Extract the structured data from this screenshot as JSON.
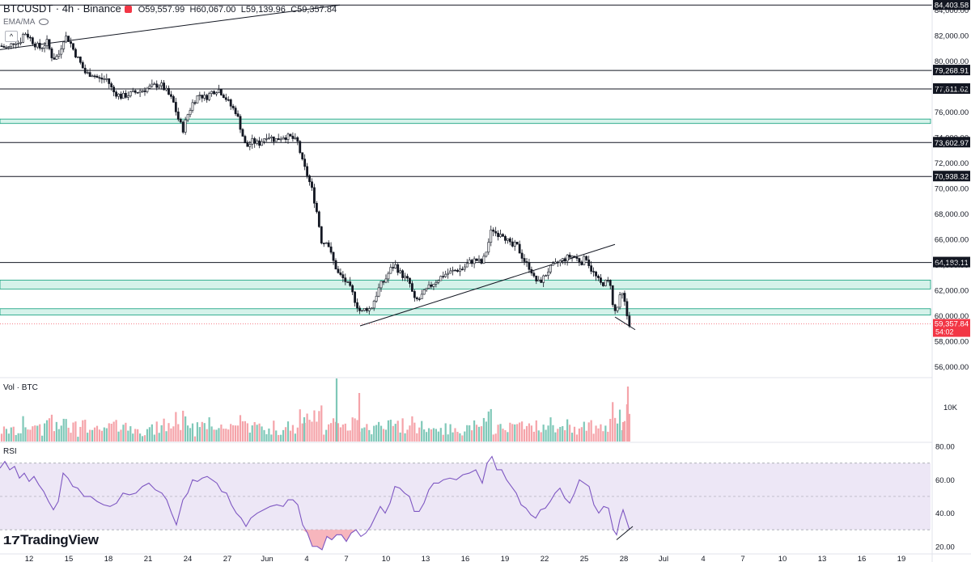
{
  "header": {
    "symbol": "BTCUSDT · 4h · Binance",
    "open": "O59,557.99",
    "high": "H60,067.00",
    "low": "L59,139.96",
    "close": "C59,357.84"
  },
  "indicator_label": "EMA/MA",
  "volume_label": "Vol · BTC",
  "rsi_label": "RSI",
  "logo_text": "TradingView",
  "colors": {
    "up": "#089981",
    "down": "#f23645",
    "up_volume": "#7fc8b8",
    "down_volume": "#f5a3a9",
    "zone_fill": "#d5f2ea",
    "zone_border": "#0d9e7a",
    "rsi_line": "#7e57c2",
    "rsi_band": "#ede7f6",
    "price_tag": "#f23645",
    "level_tag": "#131722"
  },
  "chart_data": {
    "type": "candlestick",
    "symbol": "BTCUSDT",
    "timeframe": "4h",
    "exchange": "Binance",
    "y_axis": {
      "ticks": [
        "84,000.00",
        "82,000.00",
        "80,000.00",
        "78,000.00",
        "76,000.00",
        "74,000.00",
        "72,000.00",
        "70,000.00",
        "68,000.00",
        "66,000.00",
        "64,000.00",
        "62,000.00",
        "60,000.00",
        "58,000.00",
        "56,000.00"
      ],
      "range": [
        55200,
        84800
      ]
    },
    "x_axis": {
      "ticks": [
        "12",
        "15",
        "18",
        "21",
        "24",
        "27",
        "Jun",
        "4",
        "7",
        "10",
        "13",
        "16",
        "19",
        "22",
        "25",
        "28",
        "Jul",
        "4",
        "7",
        "10",
        "13",
        "16",
        "19"
      ]
    },
    "horizontal_levels": [
      "84,403.58",
      "79,268.91",
      "77,811.62",
      "73,602.97",
      "70,938.32",
      "64,183.11"
    ],
    "zones": [
      [
        75100,
        75450
      ],
      [
        62100,
        62800
      ],
      [
        60050,
        60550
      ]
    ],
    "current_price": "59,357.84",
    "countdown": "54:02",
    "trendlines": [
      {
        "from": [
          0,
          80900
        ],
        "to": [
          420,
          84403.58
        ]
      },
      {
        "from": [
          445,
          59200
        ],
        "to": [
          760,
          65600
        ]
      },
      {
        "from": [
          760,
          59900
        ],
        "to": [
          785,
          58900
        ]
      }
    ],
    "price_path": [
      [
        0,
        81200
      ],
      [
        10,
        81000
      ],
      [
        18,
        81600
      ],
      [
        24,
        81400
      ],
      [
        30,
        82300
      ],
      [
        36,
        81900
      ],
      [
        42,
        81400
      ],
      [
        50,
        81000
      ],
      [
        58,
        81500
      ],
      [
        65,
        80200
      ],
      [
        72,
        80400
      ],
      [
        80,
        82000
      ],
      [
        86,
        81600
      ],
      [
        92,
        80700
      ],
      [
        98,
        80000
      ],
      [
        106,
        79000
      ],
      [
        114,
        79000
      ],
      [
        122,
        78600
      ],
      [
        132,
        78600
      ],
      [
        140,
        77600
      ],
      [
        150,
        77200
      ],
      [
        160,
        77400
      ],
      [
        170,
        77600
      ],
      [
        180,
        77800
      ],
      [
        188,
        78000
      ],
      [
        198,
        78200
      ],
      [
        206,
        77600
      ],
      [
        214,
        76800
      ],
      [
        220,
        75500
      ],
      [
        226,
        74600
      ],
      [
        232,
        75800
      ],
      [
        238,
        76700
      ],
      [
        246,
        77400
      ],
      [
        254,
        77100
      ],
      [
        262,
        77600
      ],
      [
        270,
        77800
      ],
      [
        278,
        77200
      ],
      [
        286,
        76400
      ],
      [
        292,
        76000
      ],
      [
        298,
        74600
      ],
      [
        304,
        73200
      ],
      [
        312,
        73700
      ],
      [
        320,
        73500
      ],
      [
        330,
        74200
      ],
      [
        340,
        73800
      ],
      [
        350,
        74100
      ],
      [
        360,
        74000
      ],
      [
        368,
        73600
      ],
      [
        374,
        72000
      ],
      [
        380,
        71000
      ],
      [
        386,
        69800
      ],
      [
        392,
        68000
      ],
      [
        398,
        65600
      ],
      [
        404,
        66000
      ],
      [
        410,
        64600
      ],
      [
        418,
        63300
      ],
      [
        426,
        62800
      ],
      [
        434,
        62000
      ],
      [
        440,
        61000
      ],
      [
        446,
        60200
      ],
      [
        452,
        60600
      ],
      [
        458,
        60500
      ],
      [
        464,
        61500
      ],
      [
        470,
        62400
      ],
      [
        476,
        62800
      ],
      [
        482,
        63600
      ],
      [
        488,
        64000
      ],
      [
        494,
        63400
      ],
      [
        500,
        63000
      ],
      [
        506,
        62600
      ],
      [
        512,
        61200
      ],
      [
        518,
        61300
      ],
      [
        524,
        61800
      ],
      [
        530,
        62200
      ],
      [
        536,
        62600
      ],
      [
        542,
        62900
      ],
      [
        548,
        63200
      ],
      [
        556,
        63400
      ],
      [
        564,
        63600
      ],
      [
        572,
        63700
      ],
      [
        580,
        64200
      ],
      [
        588,
        64400
      ],
      [
        596,
        64100
      ],
      [
        602,
        65300
      ],
      [
        608,
        66900
      ],
      [
        614,
        66400
      ],
      [
        620,
        66600
      ],
      [
        626,
        66000
      ],
      [
        632,
        65400
      ],
      [
        638,
        65600
      ],
      [
        644,
        64800
      ],
      [
        650,
        64100
      ],
      [
        656,
        63700
      ],
      [
        660,
        62900
      ],
      [
        666,
        62600
      ],
      [
        672,
        63000
      ],
      [
        678,
        63600
      ],
      [
        684,
        63900
      ],
      [
        690,
        64200
      ],
      [
        696,
        64400
      ],
      [
        702,
        64600
      ],
      [
        708,
        64700
      ],
      [
        714,
        64400
      ],
      [
        720,
        64200
      ],
      [
        724,
        64700
      ],
      [
        730,
        63700
      ],
      [
        736,
        63100
      ],
      [
        742,
        62500
      ],
      [
        748,
        62600
      ],
      [
        754,
        62700
      ],
      [
        758,
        60300
      ],
      [
        762,
        60400
      ],
      [
        766,
        61400
      ],
      [
        770,
        61700
      ],
      [
        774,
        60200
      ],
      [
        778,
        59360
      ]
    ],
    "rsi": {
      "band": [
        30,
        70
      ],
      "ticks": [
        "80.00",
        "60.00",
        "40.00",
        "20.00"
      ],
      "range": [
        16,
        82
      ],
      "values": [
        [
          0,
          67
        ],
        [
          6,
          71
        ],
        [
          12,
          66
        ],
        [
          18,
          68
        ],
        [
          24,
          61
        ],
        [
          30,
          64
        ],
        [
          36,
          59
        ],
        [
          42,
          62
        ],
        [
          48,
          57
        ],
        [
          54,
          53
        ],
        [
          60,
          47
        ],
        [
          66,
          42
        ],
        [
          72,
          47
        ],
        [
          78,
          64
        ],
        [
          84,
          61
        ],
        [
          90,
          56
        ],
        [
          96,
          55
        ],
        [
          104,
          50
        ],
        [
          112,
          50
        ],
        [
          120,
          47
        ],
        [
          128,
          45
        ],
        [
          136,
          44
        ],
        [
          144,
          46
        ],
        [
          152,
          52
        ],
        [
          160,
          51
        ],
        [
          168,
          52
        ],
        [
          176,
          56
        ],
        [
          184,
          58
        ],
        [
          192,
          54
        ],
        [
          200,
          52
        ],
        [
          206,
          48
        ],
        [
          212,
          40
        ],
        [
          218,
          33
        ],
        [
          226,
          48
        ],
        [
          232,
          52
        ],
        [
          238,
          60
        ],
        [
          244,
          59
        ],
        [
          250,
          61
        ],
        [
          256,
          62
        ],
        [
          262,
          60
        ],
        [
          268,
          58
        ],
        [
          274,
          53
        ],
        [
          280,
          52
        ],
        [
          286,
          45
        ],
        [
          292,
          40
        ],
        [
          298,
          37
        ],
        [
          304,
          32
        ],
        [
          310,
          37
        ],
        [
          318,
          40
        ],
        [
          326,
          42
        ],
        [
          334,
          44
        ],
        [
          342,
          45
        ],
        [
          350,
          44
        ],
        [
          356,
          48
        ],
        [
          362,
          48
        ],
        [
          368,
          45
        ],
        [
          374,
          33
        ],
        [
          380,
          28
        ],
        [
          386,
          20
        ],
        [
          392,
          20
        ],
        [
          398,
          18
        ],
        [
          404,
          26
        ],
        [
          410,
          24
        ],
        [
          416,
          27
        ],
        [
          422,
          27
        ],
        [
          428,
          23
        ],
        [
          434,
          28
        ],
        [
          440,
          30
        ],
        [
          446,
          26
        ],
        [
          452,
          28
        ],
        [
          458,
          32
        ],
        [
          464,
          38
        ],
        [
          470,
          44
        ],
        [
          476,
          40
        ],
        [
          482,
          46
        ],
        [
          488,
          56
        ],
        [
          494,
          55
        ],
        [
          500,
          52
        ],
        [
          506,
          50
        ],
        [
          512,
          41
        ],
        [
          518,
          41
        ],
        [
          524,
          46
        ],
        [
          530,
          54
        ],
        [
          536,
          58
        ],
        [
          542,
          58
        ],
        [
          548,
          60
        ],
        [
          556,
          61
        ],
        [
          564,
          60
        ],
        [
          572,
          63
        ],
        [
          580,
          64
        ],
        [
          588,
          66
        ],
        [
          596,
          58
        ],
        [
          602,
          70
        ],
        [
          608,
          74
        ],
        [
          614,
          66
        ],
        [
          620,
          66
        ],
        [
          626,
          60
        ],
        [
          632,
          56
        ],
        [
          638,
          52
        ],
        [
          644,
          45
        ],
        [
          650,
          43
        ],
        [
          656,
          39
        ],
        [
          662,
          37
        ],
        [
          668,
          42
        ],
        [
          674,
          43
        ],
        [
          680,
          47
        ],
        [
          686,
          52
        ],
        [
          692,
          55
        ],
        [
          698,
          49
        ],
        [
          704,
          46
        ],
        [
          710,
          52
        ],
        [
          716,
          60
        ],
        [
          722,
          58
        ],
        [
          728,
          56
        ],
        [
          734,
          45
        ],
        [
          740,
          40
        ],
        [
          746,
          44
        ],
        [
          752,
          43
        ],
        [
          758,
          30
        ],
        [
          762,
          27
        ],
        [
          766,
          36
        ],
        [
          770,
          42
        ],
        [
          774,
          36
        ],
        [
          778,
          30
        ]
      ],
      "divergence_line": {
        "from": [
          762,
          24
        ],
        "to": [
          782,
          32
        ]
      }
    },
    "volume_axis_tick": "10K"
  }
}
